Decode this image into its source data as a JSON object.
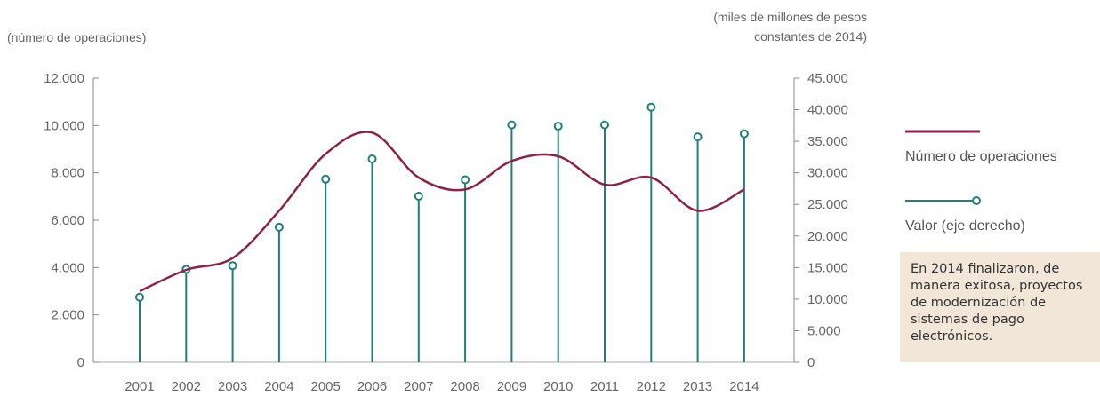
{
  "chart_data": {
    "type": "line+stem",
    "left_axis_title": "(número de operaciones)",
    "right_axis_title_line1": "(miles de millones de pesos",
    "right_axis_title_line2": "constantes de 2014)",
    "categories": [
      "2001",
      "2002",
      "2003",
      "2004",
      "2005",
      "2006",
      "2007",
      "2008",
      "2009",
      "2010",
      "2011",
      "2012",
      "2013",
      "2014"
    ],
    "left_ylim": [
      0,
      12000
    ],
    "left_ticks": [
      0,
      2000,
      4000,
      6000,
      8000,
      10000,
      12000
    ],
    "left_tick_labels": [
      "0",
      "2.000",
      "4.000",
      "6.000",
      "8.000",
      "10.000",
      "12.000"
    ],
    "right_ylim": [
      0,
      45000
    ],
    "right_ticks": [
      0,
      5000,
      10000,
      15000,
      20000,
      25000,
      30000,
      35000,
      40000,
      45000
    ],
    "right_tick_labels": [
      "0",
      "5.000",
      "10.000",
      "15.000",
      "20.000",
      "25.000",
      "30.000",
      "35.000",
      "40.000",
      "45.000"
    ],
    "series": [
      {
        "name": "Número de operaciones",
        "axis": "left",
        "style": "line",
        "color": "#8b2346",
        "values": [
          3000,
          3900,
          4400,
          6400,
          8800,
          9700,
          7800,
          7300,
          8500,
          8700,
          7500,
          7800,
          6400,
          7300
        ]
      },
      {
        "name": "Valor (eje derecho)",
        "axis": "right",
        "style": "stem",
        "color": "#1f7f7a",
        "values": [
          10300,
          14700,
          15300,
          21400,
          29000,
          32200,
          26300,
          28900,
          37600,
          37400,
          37600,
          40400,
          35700,
          36200
        ]
      }
    ],
    "grid": false,
    "legend_position": "right"
  },
  "annotation": {
    "line1": "En 2014 finalizaron, de",
    "line2": "manera exitosa, proyectos",
    "line3": "de modernización de",
    "line4": "sistemas de pago",
    "line5": "electrónicos."
  }
}
